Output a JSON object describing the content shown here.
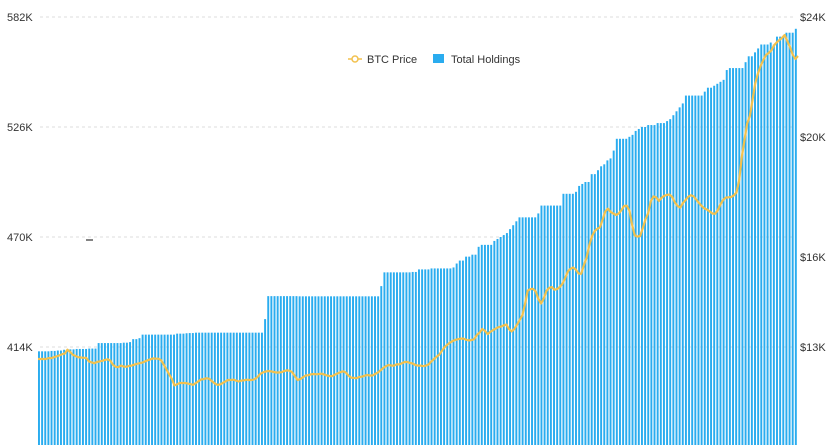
{
  "chart_data": {
    "type": "bar",
    "title": "",
    "xlabel": "",
    "ylabel": "",
    "legend": {
      "placement": "top-center",
      "entries": [
        {
          "name": "BTC Price",
          "symbol": "line",
          "color": "#F2C14E"
        },
        {
          "name": "Total Holdings",
          "symbol": "square",
          "color": "#2AACEF"
        }
      ]
    },
    "grid": {
      "horizontal": true,
      "style": "dashed",
      "color": "#dddddd"
    },
    "y_left": {
      "range": [
        386000,
        582000
      ],
      "ticks": [
        {
          "value": 414000,
          "label": "414K"
        },
        {
          "value": 470000,
          "label": "470K"
        },
        {
          "value": 526000,
          "label": "526K"
        },
        {
          "value": 582000,
          "label": "582K"
        }
      ]
    },
    "y_right": {
      "range": [
        11600,
        24000
      ],
      "ticks": [
        {
          "value": 13000,
          "label": "$13K"
        },
        {
          "value": 16000,
          "label": "$16K"
        },
        {
          "value": 20000,
          "label": "$20K"
        },
        {
          "value": 24000,
          "label": "$24K"
        }
      ]
    },
    "series": [
      {
        "name": "Total Holdings",
        "axis": "left",
        "type": "bar",
        "color": "#2AACEF",
        "values": [
          411800,
          411800,
          411800,
          411800,
          412000,
          412000,
          412200,
          412200,
          412600,
          412600,
          412800,
          412800,
          413000,
          413000,
          413000,
          413000,
          413200,
          413200,
          413200,
          416000,
          416000,
          416000,
          416000,
          416000,
          416000,
          416000,
          416000,
          416200,
          416200,
          416500,
          418000,
          418000,
          418500,
          420300,
          420300,
          420300,
          420300,
          420300,
          420300,
          420300,
          420300,
          420300,
          420300,
          420300,
          420800,
          420800,
          420800,
          421000,
          421100,
          421100,
          421300,
          421300,
          421300,
          421300,
          421300,
          421300,
          421300,
          421300,
          421300,
          421300,
          421300,
          421300,
          421300,
          421300,
          421300,
          421300,
          421300,
          421300,
          421300,
          421300,
          421300,
          421300,
          428200,
          439900,
          439900,
          439900,
          439900,
          439900,
          439900,
          439900,
          439900,
          439900,
          439900,
          439800,
          439800,
          439800,
          439800,
          439800,
          439800,
          439800,
          439800,
          439800,
          439800,
          439800,
          439800,
          439800,
          439800,
          439800,
          439800,
          439800,
          439800,
          439800,
          439800,
          439800,
          439800,
          439800,
          439800,
          439800,
          439800,
          445000,
          452000,
          452000,
          452000,
          452000,
          452000,
          452000,
          452000,
          452000,
          452000,
          452200,
          452200,
          453500,
          453500,
          453500,
          453500,
          454000,
          454000,
          454000,
          454000,
          454000,
          454000,
          454000,
          454500,
          456500,
          458000,
          458000,
          460000,
          460000,
          461000,
          461000,
          465000,
          466000,
          466000,
          466000,
          466000,
          468000,
          469000,
          470000,
          471000,
          472000,
          474000,
          476000,
          478000,
          480000,
          480000,
          480000,
          480000,
          480000,
          480000,
          482000,
          486000,
          486000,
          486000,
          486000,
          486000,
          486000,
          486000,
          492000,
          492000,
          492000,
          492000,
          493000,
          496000,
          497000,
          498000,
          498000,
          502000,
          502000,
          504000,
          506000,
          507000,
          509000,
          510000,
          514000,
          520000,
          520000,
          520000,
          520000,
          521000,
          522000,
          524000,
          525000,
          526000,
          526000,
          527000,
          527000,
          527000,
          528000,
          528000,
          528000,
          529000,
          530000,
          532000,
          534000,
          536000,
          538000,
          542000,
          542000,
          542000,
          542000,
          542000,
          542000,
          544000,
          546000,
          546000,
          547000,
          548000,
          549000,
          550000,
          555000,
          556000,
          556000,
          556000,
          556000,
          556000,
          559000,
          562000,
          562000,
          564000,
          566000,
          568000,
          568000,
          568000,
          569000,
          568000,
          572000,
          572000,
          572000,
          574000,
          574000,
          574000,
          576000
        ]
      },
      {
        "name": "BTC Price",
        "axis": "right",
        "type": "line",
        "color": "#F2C14E",
        "values": [
          12600,
          12600,
          12600,
          12600,
          12630,
          12630,
          12660,
          12690,
          12720,
          12760,
          12780,
          12910,
          12840,
          12740,
          12700,
          12660,
          12650,
          12640,
          12640,
          12520,
          12490,
          12460,
          12500,
          12520,
          12540,
          12570,
          12590,
          12550,
          12410,
          12340,
          12330,
          12380,
          12350,
          12340,
          12370,
          12380,
          12410,
          12440,
          12460,
          12480,
          12520,
          12560,
          12590,
          12620,
          12610,
          12610,
          12560,
          12410,
          12250,
          12090,
          11940,
          11720,
          11760,
          11800,
          11800,
          11800,
          11780,
          11760,
          11740,
          11800,
          11860,
          11920,
          11930,
          11960,
          11940,
          11860,
          11790,
          11740,
          11750,
          11800,
          11850,
          11900,
          11900,
          11910,
          11880,
          11850,
          11880,
          11890,
          11910,
          11900,
          11900,
          11930,
          12000,
          12100,
          12150,
          12180,
          12200,
          12190,
          12170,
          12150,
          12150,
          12160,
          12200,
          12220,
          12210,
          12160,
          12030,
          11900,
          11930,
          11990,
          12050,
          12060,
          12090,
          12100,
          12090,
          12100,
          12110,
          12080,
          12050,
          12030,
          12030,
          12080,
          12120,
          12160,
          12190,
          12150,
          12050,
          11980,
          11970,
          11960,
          12000,
          12010,
          12040,
          12070,
          12050,
          12050,
          12100,
          12150,
          12220,
          12300,
          12360,
          12400,
          12380,
          12380,
          12420,
          12420,
          12460,
          12500,
          12500,
          12470,
          12450,
          12400,
          12380,
          12380,
          12360,
          12380,
          12420,
          12520,
          12600,
          12680,
          12750,
          12880,
          13000,
          13080,
          13150,
          13200,
          13240,
          13260,
          13280,
          13280,
          13240,
          13220,
          13230,
          13260,
          13400,
          13480,
          13600,
          13540,
          13430,
          13500,
          13560,
          13610,
          13660,
          13680,
          13720,
          13750,
          13600,
          13520,
          13600,
          13740,
          13900,
          14060,
          14440,
          14880,
          14930,
          14940,
          14850,
          14600,
          14450,
          14620,
          14870,
          14970,
          15000,
          14910,
          14930,
          15000,
          15110,
          15300,
          15520,
          15610,
          15650,
          15580,
          15450,
          15440,
          15730,
          15980,
          16390,
          16690,
          16860,
          16940,
          16990,
          17250,
          17520,
          17610,
          17500,
          17450,
          17400,
          17450,
          17560,
          17700,
          17710,
          17550,
          17080,
          16720,
          16680,
          16700,
          16960,
          17250,
          17460,
          17860,
          18020,
          17990,
          17870,
          17970,
          18040,
          18070,
          18080,
          18000,
          17820,
          17700,
          17650,
          17800,
          17900,
          18010,
          18060,
          18020,
          17910,
          17800,
          17700,
          17620,
          17580,
          17520,
          17450,
          17440,
          17550,
          17750,
          17900,
          17980,
          17990,
          18000,
          18050,
          18150,
          18550,
          19330,
          19900,
          20450,
          20700,
          21230,
          21780,
          22110,
          22360,
          22560,
          22730,
          22800,
          22880,
          23050,
          23150,
          23230,
          23300,
          23400,
          23200,
          23000,
          22750,
          22600,
          22700
        ]
      }
    ]
  }
}
